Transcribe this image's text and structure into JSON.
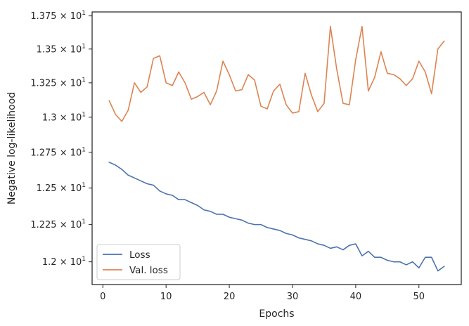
{
  "chart_data": {
    "type": "line",
    "xlabel": "Epochs",
    "ylabel": "Negative log-likelihood",
    "y_scale": "log",
    "xlim": [
      -1.7,
      56.7
    ],
    "ylim": [
      11.85,
      13.78
    ],
    "grid": false,
    "legend_position": "lower-left",
    "x_ticks": [
      0,
      10,
      20,
      30,
      40,
      50
    ],
    "x_tick_labels": [
      "0",
      "10",
      "20",
      "30",
      "40",
      "50"
    ],
    "y_ticks": [
      12.0,
      12.25,
      12.5,
      12.75,
      13.0,
      13.25,
      13.5,
      13.75
    ],
    "y_tick_labels": [
      {
        "mantissa": "1.2",
        "exponent": "1"
      },
      {
        "mantissa": "1.225",
        "exponent": "1"
      },
      {
        "mantissa": "1.25",
        "exponent": "1"
      },
      {
        "mantissa": "1.275",
        "exponent": "1"
      },
      {
        "mantissa": "1.3",
        "exponent": "1"
      },
      {
        "mantissa": "1.325",
        "exponent": "1"
      },
      {
        "mantissa": "1.35",
        "exponent": "1"
      },
      {
        "mantissa": "1.375",
        "exponent": "1"
      }
    ],
    "y_tick_base": "× 10",
    "x": [
      1,
      2,
      3,
      4,
      5,
      6,
      7,
      8,
      9,
      10,
      11,
      12,
      13,
      14,
      15,
      16,
      17,
      18,
      19,
      20,
      21,
      22,
      23,
      24,
      25,
      26,
      27,
      28,
      29,
      30,
      31,
      32,
      33,
      34,
      35,
      36,
      37,
      38,
      39,
      40,
      41,
      42,
      43,
      44,
      45,
      46,
      47,
      48,
      49,
      50,
      51,
      52,
      53,
      54
    ],
    "series": [
      {
        "name": "Loss",
        "color": "#4c72b0",
        "values": [
          12.68,
          12.66,
          12.63,
          12.59,
          12.57,
          12.55,
          12.53,
          12.52,
          12.48,
          12.46,
          12.45,
          12.42,
          12.42,
          12.4,
          12.38,
          12.35,
          12.34,
          12.32,
          12.32,
          12.3,
          12.29,
          12.28,
          12.26,
          12.25,
          12.25,
          12.23,
          12.22,
          12.21,
          12.19,
          12.18,
          12.16,
          12.15,
          12.14,
          12.12,
          12.11,
          12.09,
          12.1,
          12.08,
          12.11,
          12.12,
          12.04,
          12.07,
          12.03,
          12.03,
          12.01,
          12.0,
          12.0,
          11.98,
          12.0,
          11.96,
          12.03,
          12.03,
          11.94,
          11.97
        ]
      },
      {
        "name": "Val. loss",
        "color": "#dd8452",
        "values": [
          13.12,
          13.02,
          12.97,
          13.05,
          13.25,
          13.18,
          13.22,
          13.43,
          13.45,
          13.25,
          13.23,
          13.33,
          13.25,
          13.13,
          13.15,
          13.18,
          13.09,
          13.19,
          13.41,
          13.31,
          13.19,
          13.2,
          13.31,
          13.27,
          13.08,
          13.06,
          13.19,
          13.24,
          13.09,
          13.03,
          13.04,
          13.32,
          13.16,
          13.04,
          13.1,
          13.67,
          13.35,
          13.1,
          13.09,
          13.42,
          13.67,
          13.19,
          13.29,
          13.48,
          13.32,
          13.31,
          13.28,
          13.23,
          13.28,
          13.41,
          13.33,
          13.17,
          13.5,
          13.56
        ]
      }
    ]
  }
}
